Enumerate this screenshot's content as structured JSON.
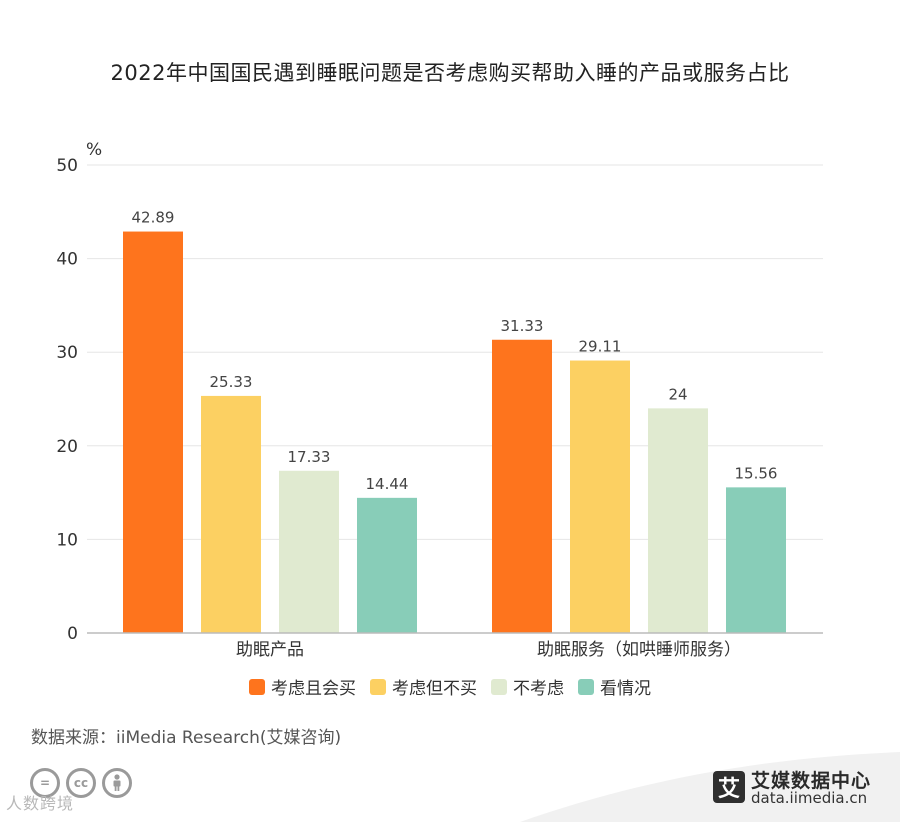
{
  "chart_data": {
    "type": "bar",
    "title": "2022年中国国民遇到睡眠问题是否考虑购买帮助入睡的产品或服务占比",
    "ylabel": "%",
    "xlabel": "",
    "ylim": [
      0,
      50
    ],
    "yticks": [
      "0",
      "10",
      "20",
      "30",
      "40",
      "50"
    ],
    "categories": [
      "助眠产品",
      "助眠服务（如哄睡师服务）"
    ],
    "series": [
      {
        "name": "考虑且会买",
        "values": [
          42.89,
          31.33
        ],
        "labels": [
          "42.89",
          "31.33"
        ],
        "color": "#fe741d"
      },
      {
        "name": "考虑但不买",
        "values": [
          25.33,
          29.11
        ],
        "labels": [
          "25.33",
          "29.11"
        ],
        "color": "#fcd062"
      },
      {
        "name": "不考虑",
        "values": [
          17.33,
          24
        ],
        "labels": [
          "17.33",
          "24"
        ],
        "color": "#e0ead0"
      },
      {
        "name": "看情况",
        "values": [
          14.44,
          15.56
        ],
        "labels": [
          "14.44",
          "15.56"
        ],
        "color": "#88cdb8"
      }
    ],
    "grid": true,
    "legend_position": "bottom"
  },
  "source": "数据来源：iiMedia Research(艾媒咨询)",
  "brand": {
    "logo_char": "艾",
    "name": "艾媒数据中心",
    "url": "data.iimedia.cn"
  },
  "watermark": "人数跨境",
  "license_icons": [
    "equals-icon",
    "cc-icon",
    "person-icon"
  ],
  "colors": {
    "grid": "#e6e6e6",
    "axis": "#bbbbbb"
  }
}
